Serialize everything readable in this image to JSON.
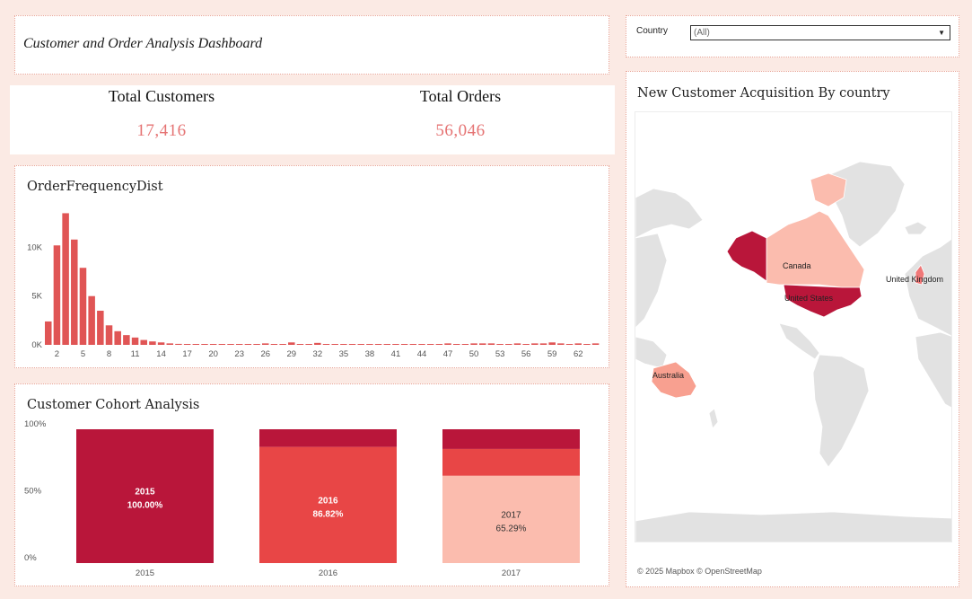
{
  "header": {
    "title": "Customer and Order Analysis Dashboard"
  },
  "kpis": [
    {
      "label": "Total Customers",
      "value": "17,416"
    },
    {
      "label": "Total Orders",
      "value": "56,046"
    }
  ],
  "filter": {
    "label": "Country",
    "value": "(All)"
  },
  "colors": {
    "dark": "#b9163a",
    "mid": "#e84646",
    "light": "#fbbcae",
    "bar": "#e05555"
  },
  "map": {
    "title": "New Customer Acquisition By country",
    "credit": "© 2025 Mapbox  © OpenStreetMap",
    "labels": {
      "canada": "Canada",
      "us": "United States",
      "uk": "United Kingdom",
      "australia": "Australia"
    }
  },
  "chart_data": [
    {
      "type": "bar",
      "title": "OrderFrequencyDist",
      "x": [
        1,
        2,
        3,
        4,
        5,
        6,
        7,
        8,
        9,
        10,
        11,
        12,
        13,
        14,
        15,
        16,
        17,
        18,
        19,
        20,
        21,
        22,
        23,
        24,
        25,
        26,
        27,
        28,
        29,
        30,
        31,
        32,
        33,
        34,
        35,
        36,
        37,
        38,
        39,
        40,
        41,
        42,
        43,
        44,
        45,
        46,
        47,
        48,
        49,
        50,
        51,
        52,
        53,
        54,
        55,
        56,
        57,
        58,
        59,
        60,
        61,
        62,
        63,
        64
      ],
      "values": [
        2400,
        10200,
        13500,
        10800,
        7900,
        5000,
        3500,
        2000,
        1400,
        1000,
        750,
        500,
        350,
        250,
        150,
        100,
        80,
        60,
        40,
        30,
        20,
        20,
        20,
        20,
        20,
        150,
        20,
        20,
        250,
        30,
        20,
        200,
        20,
        20,
        20,
        20,
        20,
        20,
        20,
        20,
        20,
        20,
        20,
        20,
        20,
        20,
        150,
        20,
        20,
        150,
        150,
        150,
        20,
        20,
        150,
        20,
        150,
        150,
        250,
        150,
        20,
        150,
        20,
        150
      ],
      "x_ticks": [
        "2",
        "5",
        "8",
        "11",
        "14",
        "17",
        "20",
        "23",
        "26",
        "29",
        "32",
        "35",
        "38",
        "41",
        "44",
        "47",
        "50",
        "53",
        "56",
        "59",
        "62"
      ],
      "y_ticks": [
        "0K",
        "5K",
        "10K"
      ],
      "ylim": [
        0,
        14000
      ]
    },
    {
      "type": "bar",
      "title": "Customer Cohort Analysis",
      "categories": [
        "2015",
        "2016",
        "2017"
      ],
      "stacked": true,
      "y_ticks": [
        "0%",
        "50%",
        "100%"
      ],
      "segments": [
        [
          {
            "cohort": "2015",
            "pct": 100.0,
            "color": "dark",
            "label": "2015",
            "value_label": "100.00%"
          }
        ],
        [
          {
            "cohort": "2016",
            "pct": 86.82,
            "color": "mid",
            "label": "2016",
            "value_label": "86.82%"
          },
          {
            "cohort": "2015",
            "pct": 13.18,
            "color": "dark"
          }
        ],
        [
          {
            "cohort": "2017",
            "pct": 65.29,
            "color": "light",
            "label": "2017",
            "value_label": "65.29%"
          },
          {
            "cohort": "2016",
            "pct": 20.0,
            "color": "mid"
          },
          {
            "cohort": "2015",
            "pct": 14.71,
            "color": "dark"
          }
        ]
      ],
      "ylim": [
        0,
        100
      ]
    }
  ]
}
